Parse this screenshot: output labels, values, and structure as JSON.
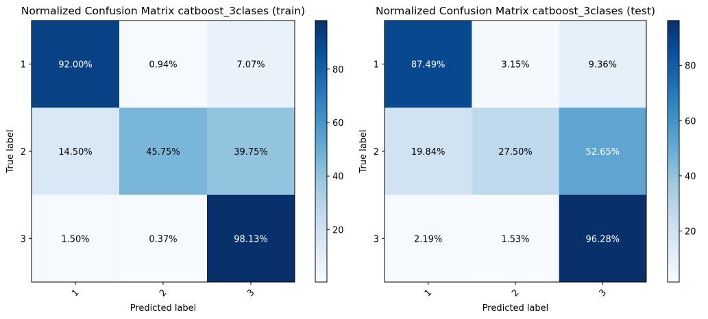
{
  "chart_data": [
    {
      "type": "heatmap",
      "title": "Normalized Confusion Matrix catboost_3clases (train)",
      "xlabel": "Predicted label",
      "ylabel": "True label",
      "x_categories": [
        "1",
        "2",
        "3"
      ],
      "y_categories": [
        "1",
        "2",
        "3"
      ],
      "values": [
        [
          92.0,
          0.94,
          7.07
        ],
        [
          14.5,
          45.75,
          39.75
        ],
        [
          1.5,
          0.37,
          98.13
        ]
      ],
      "cell_labels": [
        [
          "92.00%",
          "0.94%",
          "7.07%"
        ],
        [
          "14.50%",
          "45.75%",
          "39.75%"
        ],
        [
          "1.50%",
          "0.37%",
          "98.13%"
        ]
      ],
      "colormap": "Blues",
      "colorbar": {
        "ticks": [
          "20",
          "40",
          "60",
          "80"
        ],
        "range": [
          0.37,
          98.13
        ]
      }
    },
    {
      "type": "heatmap",
      "title": "Normalized Confusion Matrix catboost_3clases (test)",
      "xlabel": "Predicted label",
      "ylabel": "True label",
      "x_categories": [
        "1",
        "2",
        "3"
      ],
      "y_categories": [
        "1",
        "2",
        "3"
      ],
      "values": [
        [
          87.49,
          3.15,
          9.36
        ],
        [
          19.84,
          27.5,
          52.65
        ],
        [
          2.19,
          1.53,
          96.28
        ]
      ],
      "cell_labels": [
        [
          "87.49%",
          "3.15%",
          "9.36%"
        ],
        [
          "19.84%",
          "27.50%",
          "52.65%"
        ],
        [
          "2.19%",
          "1.53%",
          "96.28%"
        ]
      ],
      "colormap": "Blues",
      "colorbar": {
        "ticks": [
          "20",
          "40",
          "60",
          "80"
        ],
        "range": [
          1.53,
          96.28
        ]
      }
    }
  ]
}
